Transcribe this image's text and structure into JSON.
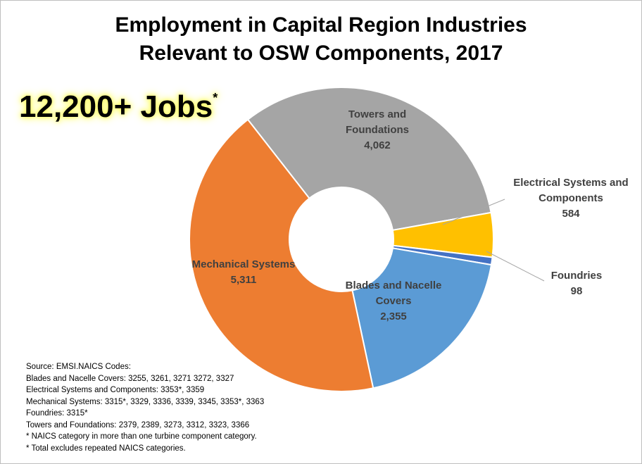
{
  "chart_data": {
    "type": "donut",
    "title": [
      "Employment in Capital Region Industries",
      "Relevant to OSW Components, 2017"
    ],
    "annotation": "12,200+ Jobs",
    "annotation_mark": "*",
    "categories": [
      "Towers and Foundations",
      "Electrical Systems and Components",
      "Foundries",
      "Blades and Nacelle Covers",
      "Mechanical Systems"
    ],
    "values": [
      4062,
      584,
      98,
      2355,
      5311
    ],
    "value_labels": [
      "4,062",
      "584",
      "98",
      "2,355",
      "5,311"
    ],
    "colors": [
      "#a5a5a5",
      "#ffc000",
      "#4472c4",
      "#5b9bd5",
      "#ed7d31"
    ],
    "notes": [
      "Source: EMSI.NAICS Codes:",
      "Blades and Nacelle Covers: 3255, 3261, 3271 3272, 3327",
      "Electrical Systems and Components: 3353*, 3359",
      "Mechanical Systems: 3315*, 3329, 3336, 3339, 3345, 3353*, 3363",
      "Foundries: 3315*",
      "Towers and Foundations: 2379, 2389, 3273, 3312, 3323, 3366",
      "* NAICS category in more than one turbine component category.",
      "* Total excludes repeated NAICS categories."
    ]
  }
}
